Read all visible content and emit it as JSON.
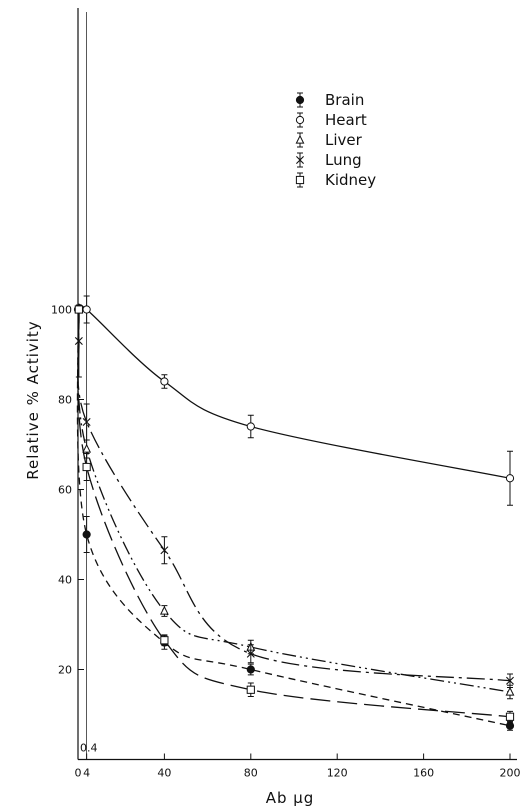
{
  "chart_data": {
    "type": "line",
    "title": "",
    "xlabel": "Ab µg",
    "ylabel": "Relative % Activity",
    "xlim": [
      0,
      200
    ],
    "ylim": [
      0,
      105
    ],
    "x_ticks": [
      "0",
      "4",
      "40",
      "80",
      "120",
      "160",
      "200"
    ],
    "y_ticks": [
      "20",
      "40",
      "60",
      "80",
      "100"
    ],
    "annotation": "0.4",
    "grid": false,
    "legend_position": "top-right",
    "series": [
      {
        "name": "Brain",
        "marker": "filled-circle",
        "line": "dashed",
        "x": [
          0,
          4,
          40,
          80,
          200
        ],
        "y": [
          100,
          50,
          26,
          20,
          7.5
        ],
        "err": [
          0,
          4,
          1.5,
          1.2,
          1
        ]
      },
      {
        "name": "Heart",
        "marker": "open-circle",
        "line": "solid",
        "x": [
          0.4,
          4,
          40,
          80,
          200
        ],
        "y": [
          100,
          100,
          84,
          74,
          62.5
        ],
        "err": [
          0,
          3,
          1.5,
          2.5,
          6
        ]
      },
      {
        "name": "Liver",
        "marker": "open-triangle",
        "line": "dash-dot-dot",
        "x": [
          0.4,
          4,
          40,
          80,
          200
        ],
        "y": [
          100,
          69,
          33,
          25,
          15
        ],
        "err": [
          0,
          2,
          1.2,
          1.5,
          1.5
        ]
      },
      {
        "name": "Lung",
        "marker": "x",
        "line": "long-dash-dot",
        "x": [
          0.4,
          4,
          40,
          80,
          200
        ],
        "y": [
          93,
          75,
          46.5,
          23.5,
          17.5
        ],
        "err": [
          8,
          4,
          3,
          2,
          1.5
        ]
      },
      {
        "name": "Kidney",
        "marker": "open-square",
        "line": "long-dash",
        "x": [
          0.4,
          4,
          40,
          80,
          200
        ],
        "y": [
          100,
          65,
          26.5,
          15.5,
          9.5
        ],
        "err": [
          0,
          3,
          1.2,
          1.5,
          1.2
        ]
      }
    ]
  }
}
